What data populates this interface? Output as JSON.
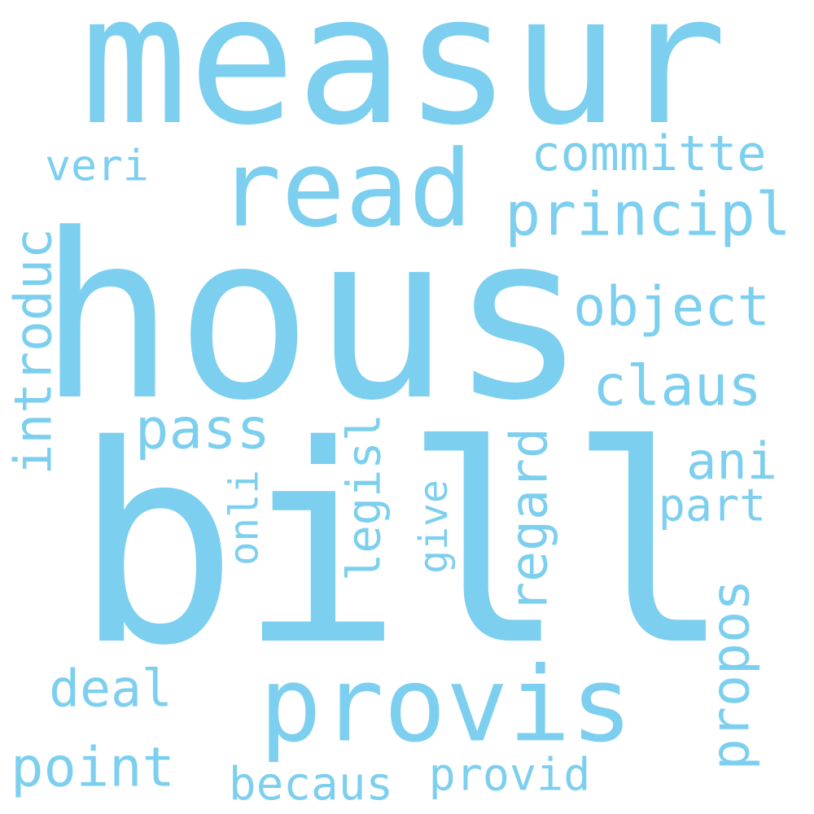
{
  "word_cloud": {
    "color": "#7dcfef",
    "background": "#ffffff",
    "words": [
      {
        "id": "measur",
        "text": "measur",
        "orientation": "horizontal"
      },
      {
        "id": "hous",
        "text": "hous",
        "orientation": "horizontal"
      },
      {
        "id": "bill",
        "text": "bill",
        "orientation": "horizontal"
      },
      {
        "id": "read",
        "text": "read",
        "orientation": "horizontal"
      },
      {
        "id": "provis",
        "text": "provis",
        "orientation": "horizontal"
      },
      {
        "id": "principl",
        "text": "principl",
        "orientation": "horizontal"
      },
      {
        "id": "committe",
        "text": "committe",
        "orientation": "horizontal"
      },
      {
        "id": "veri",
        "text": "veri",
        "orientation": "horizontal"
      },
      {
        "id": "object",
        "text": "object",
        "orientation": "horizontal"
      },
      {
        "id": "claus",
        "text": "claus",
        "orientation": "horizontal"
      },
      {
        "id": "pass",
        "text": "pass",
        "orientation": "horizontal"
      },
      {
        "id": "ani",
        "text": "ani",
        "orientation": "horizontal"
      },
      {
        "id": "part",
        "text": "part",
        "orientation": "horizontal"
      },
      {
        "id": "deal",
        "text": "deal",
        "orientation": "horizontal"
      },
      {
        "id": "point",
        "text": "point",
        "orientation": "horizontal"
      },
      {
        "id": "becaus",
        "text": "becaus",
        "orientation": "horizontal"
      },
      {
        "id": "provid",
        "text": "provid",
        "orientation": "horizontal"
      },
      {
        "id": "introduc",
        "text": "introduc",
        "orientation": "vertical"
      },
      {
        "id": "legisl",
        "text": "legisl",
        "orientation": "vertical"
      },
      {
        "id": "regard",
        "text": "regard",
        "orientation": "vertical"
      },
      {
        "id": "onli",
        "text": "onli",
        "orientation": "vertical"
      },
      {
        "id": "give",
        "text": "give",
        "orientation": "vertical"
      },
      {
        "id": "propos",
        "text": "propos",
        "orientation": "vertical"
      }
    ]
  }
}
